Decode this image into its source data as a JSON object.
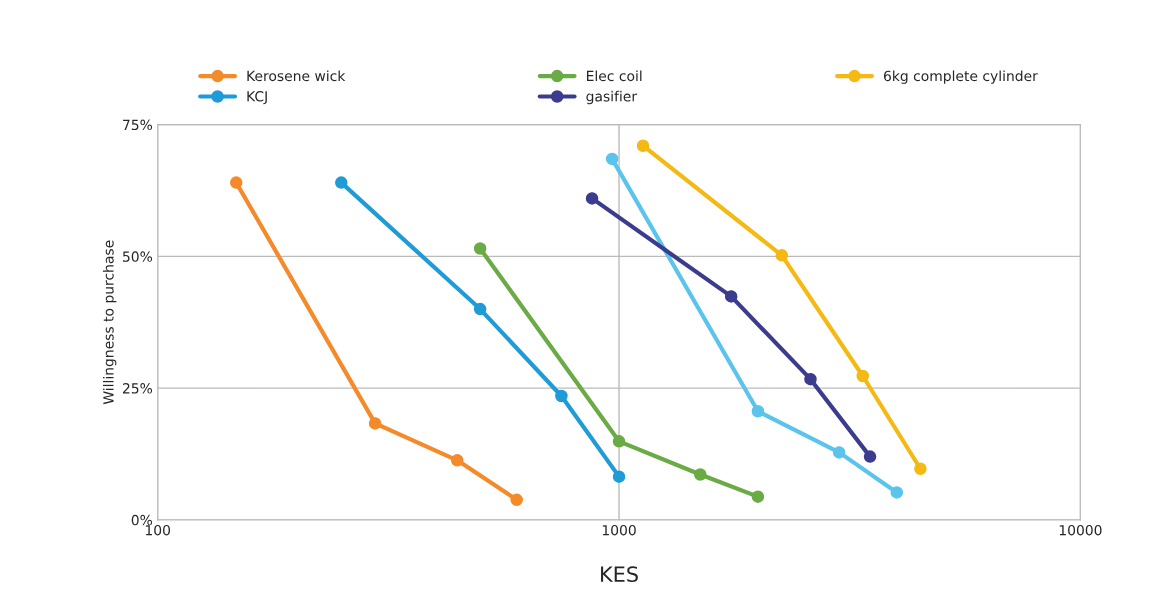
{
  "chart_data": {
    "type": "line",
    "xlabel": "KES",
    "ylabel": "Willingness to purchase",
    "log": "x",
    "grid": true,
    "legend": "top",
    "marker": "circle",
    "line_style": "solid",
    "xlim": [
      100,
      10000
    ],
    "xticks": [
      100,
      1000,
      10000
    ],
    "ylim": [
      0,
      75
    ],
    "yticks": [
      {
        "value": 0,
        "label": "0%"
      },
      {
        "value": 25,
        "label": "25%"
      },
      {
        "value": 50,
        "label": "50%"
      },
      {
        "value": 75,
        "label": "75%"
      }
    ],
    "series": [
      {
        "name": "Kerosene wick",
        "color": "#f58a2a",
        "x": [
          148,
          296,
          446,
          600
        ],
        "values": [
          64,
          18.3,
          11.3,
          3.8
        ]
      },
      {
        "name": "KCJ",
        "color": "#1f9bd7",
        "x": [
          250,
          500,
          750,
          1000
        ],
        "values": [
          64,
          40,
          23.5,
          8.2
        ]
      },
      {
        "name": "Elec coil",
        "color": "#6aab45",
        "x": [
          500,
          1000,
          1500,
          2000
        ],
        "values": [
          51.5,
          14.9,
          8.6,
          4.4
        ]
      },
      {
        "color": "#5bc4ec",
        "x": [
          966,
          2000,
          3000,
          4000
        ],
        "values": [
          68.5,
          20.6,
          12.8,
          5.2
        ]
      },
      {
        "name": "gasifier",
        "color": "#3c3c8f",
        "x": [
          874,
          1750,
          2600,
          3500
        ],
        "values": [
          61,
          42.4,
          26.7,
          12
        ]
      },
      {
        "name": "6kg complete cylinder",
        "color": "#f5b914",
        "x": [
          1127,
          2253,
          3375,
          4500
        ],
        "values": [
          71,
          50.2,
          27.3,
          9.7
        ]
      }
    ]
  }
}
